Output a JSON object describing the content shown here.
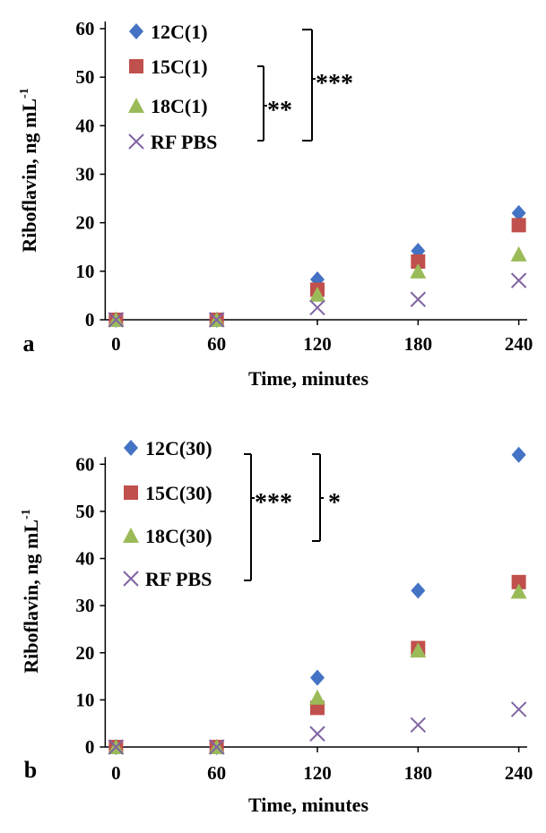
{
  "chart_data": [
    {
      "type": "scatter",
      "panel_label": "a",
      "xlabel": "Time, minutes",
      "ylabel": "Riboflavin, ng mL",
      "ylabel_sup": "-1",
      "xticks": [
        0,
        60,
        120,
        180,
        240
      ],
      "yticks": [
        0,
        10,
        20,
        30,
        40,
        50,
        60
      ],
      "xlim": [
        -5,
        245
      ],
      "ylim": [
        0,
        60
      ],
      "x": [
        0,
        60,
        120,
        180,
        240
      ],
      "legend_position": "top-left",
      "series": [
        {
          "name": "12C(1)",
          "marker": "diamond",
          "color": "#4472C4",
          "values": [
            0,
            0,
            8.3,
            14.2,
            22
          ]
        },
        {
          "name": "15C(1)",
          "marker": "square",
          "color": "#C0504D",
          "values": [
            0,
            0,
            6.2,
            12,
            19.5
          ]
        },
        {
          "name": "18C(1)",
          "marker": "triangle",
          "color": "#9BBB59",
          "values": [
            0,
            0,
            5.2,
            10,
            13.5
          ]
        },
        {
          "name": "RF PBS",
          "marker": "x",
          "color": "#8064A2",
          "values": [
            0,
            0,
            2.5,
            4.2,
            8.1
          ]
        }
      ],
      "annotations": [
        {
          "text": "**",
          "spans": [
            "15C(1)",
            "RF PBS"
          ]
        },
        {
          "text": "***",
          "spans": [
            "12C(1)",
            "RF PBS"
          ]
        }
      ]
    },
    {
      "type": "scatter",
      "panel_label": "b",
      "xlabel": "Time, minutes",
      "ylabel": "Riboflavin, ng mL",
      "ylabel_sup": "-1",
      "xticks": [
        0,
        60,
        120,
        180,
        240
      ],
      "yticks": [
        0,
        10,
        20,
        30,
        40,
        50,
        60
      ],
      "xlim": [
        -5,
        245
      ],
      "ylim": [
        0,
        65
      ],
      "x": [
        0,
        60,
        120,
        180,
        240
      ],
      "legend_position": "top-left",
      "series": [
        {
          "name": "12C(30)",
          "marker": "diamond",
          "color": "#4472C4",
          "values": [
            0,
            0,
            14.7,
            33.2,
            62
          ]
        },
        {
          "name": "15C(30)",
          "marker": "square",
          "color": "#C0504D",
          "values": [
            0,
            0,
            8.3,
            21,
            35
          ]
        },
        {
          "name": "18C(30)",
          "marker": "triangle",
          "color": "#9BBB59",
          "values": [
            0,
            0,
            10.5,
            20.5,
            33
          ]
        },
        {
          "name": "RF PBS",
          "marker": "x",
          "color": "#8064A2",
          "values": [
            0,
            0,
            2.8,
            4.7,
            8
          ]
        }
      ],
      "annotations": [
        {
          "text": "***",
          "spans": [
            "12C(30)",
            "RF PBS"
          ]
        },
        {
          "text": "*",
          "spans": [
            "12C(30)",
            "18C(30)"
          ]
        }
      ]
    }
  ]
}
